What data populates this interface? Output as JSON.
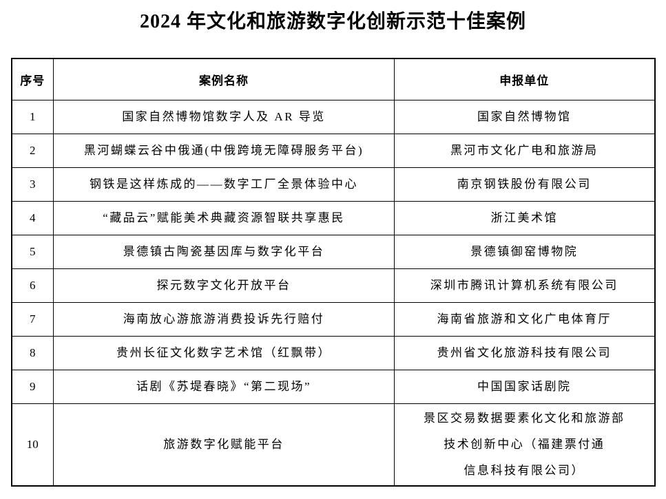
{
  "title": "2024 年文化和旅游数字化创新示范十佳案例",
  "table": {
    "headers": [
      "序号",
      "案例名称",
      "申报单位"
    ],
    "rows": [
      {
        "no": "1",
        "name": "国家自然博物馆数字人及 AR 导览",
        "org": "国家自然博物馆"
      },
      {
        "no": "2",
        "name": "黑河蝴蝶云谷中俄通(中俄跨境无障碍服务平台)",
        "org": "黑河市文化广电和旅游局"
      },
      {
        "no": "3",
        "name": "钢铁是这样炼成的——数字工厂全景体验中心",
        "org": "南京钢铁股份有限公司"
      },
      {
        "no": "4",
        "name": "“藏品云”赋能美术典藏资源智联共享惠民",
        "org": "浙江美术馆"
      },
      {
        "no": "5",
        "name": "景德镇古陶瓷基因库与数字化平台",
        "org": "景德镇御窑博物院"
      },
      {
        "no": "6",
        "name": "探元数字文化开放平台",
        "org": "深圳市腾讯计算机系统有限公司"
      },
      {
        "no": "7",
        "name": "海南放心游旅游消费投诉先行赔付",
        "org": "海南省旅游和文化广电体育厅"
      },
      {
        "no": "8",
        "name": "贵州长征文化数字艺术馆（红飘带）",
        "org": "贵州省文化旅游科技有限公司"
      },
      {
        "no": "9",
        "name": "话剧《苏堤春晓》“第二现场”",
        "org": "中国国家话剧院"
      },
      {
        "no": "10",
        "name": "旅游数字化赋能平台",
        "org": "景区交易数据要素化文化和旅游部\n技术创新中心（福建票付通\n信息科技有限公司）"
      }
    ]
  }
}
